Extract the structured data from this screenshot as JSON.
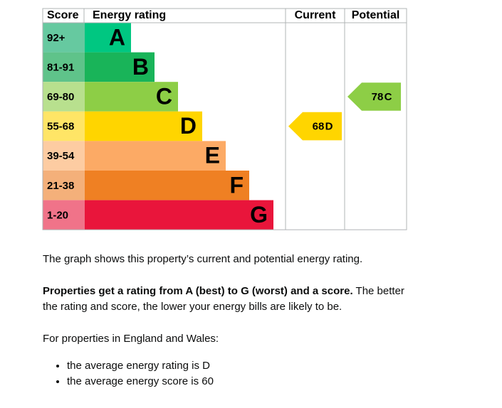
{
  "table": {
    "headers": [
      "Score",
      "Energy rating",
      "Current",
      "Potential"
    ],
    "bands": [
      {
        "score": "92+",
        "letter": "A",
        "color": "#00c781",
        "light": "#66c9a0"
      },
      {
        "score": "81-91",
        "letter": "B",
        "color": "#19b459",
        "light": "#5fc38a"
      },
      {
        "score": "69-80",
        "letter": "C",
        "color": "#8dce46",
        "light": "#b8e08e"
      },
      {
        "score": "55-68",
        "letter": "D",
        "color": "#ffd500",
        "light": "#ffe566"
      },
      {
        "score": "39-54",
        "letter": "E",
        "color": "#fcaa65",
        "light": "#fdcca2"
      },
      {
        "score": "21-38",
        "letter": "F",
        "color": "#ef8023",
        "light": "#f4b07a"
      },
      {
        "score": "1-20",
        "letter": "G",
        "color": "#e9153b",
        "light": "#f07389"
      }
    ],
    "current": {
      "score": 68,
      "letter": "D"
    },
    "potential": {
      "score": 78,
      "letter": "C"
    }
  },
  "text": {
    "intro": "The graph shows this property’s current and potential energy rating.",
    "rating_bold": "Properties get a rating from A (best) to G (worst) and a score.",
    "rating_rest": "The better the rating and score, the lower your energy bills are likely to be.",
    "regions": "For properties in England and Wales:",
    "bullets": [
      "the average energy rating is D",
      "the average energy score is 60"
    ]
  }
}
